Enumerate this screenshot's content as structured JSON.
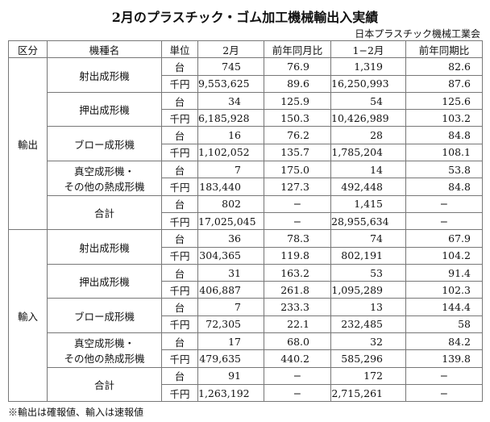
{
  "header": {
    "title": "2月のプラスチック・ゴム加工機械輸出入実績",
    "source": "日本プラスチック機械工業会"
  },
  "table": {
    "columns": [
      "区分",
      "機種名",
      "単位",
      "2月",
      "前年同月比",
      "1−2月",
      "前年同期比"
    ],
    "groups": [
      {
        "label": "輸出",
        "machines": [
          {
            "name": [
              "射出成形機"
            ],
            "rows": [
              {
                "unit": "台",
                "values": [
                  "745",
                  "76.9",
                  "1,319",
                  "82.6"
                ]
              },
              {
                "unit": "千円",
                "values": [
                  "9,553,625",
                  "89.6",
                  "16,250,993",
                  "87.6"
                ]
              }
            ]
          },
          {
            "name": [
              "押出成形機"
            ],
            "rows": [
              {
                "unit": "台",
                "values": [
                  "34",
                  "125.9",
                  "54",
                  "125.6"
                ]
              },
              {
                "unit": "千円",
                "values": [
                  "6,185,928",
                  "150.3",
                  "10,426,989",
                  "103.2"
                ]
              }
            ]
          },
          {
            "name": [
              "ブロー成形機"
            ],
            "rows": [
              {
                "unit": "台",
                "values": [
                  "16",
                  "76.2",
                  "28",
                  "84.8"
                ]
              },
              {
                "unit": "千円",
                "values": [
                  "1,102,052",
                  "135.7",
                  "1,785,204",
                  "108.1"
                ]
              }
            ]
          },
          {
            "name": [
              "真空成形機・",
              "その他の熱成形機"
            ],
            "rows": [
              {
                "unit": "台",
                "values": [
                  "7",
                  "175.0",
                  "14",
                  "53.8"
                ]
              },
              {
                "unit": "千円",
                "values": [
                  "183,440",
                  "127.3",
                  "492,448",
                  "84.8"
                ]
              }
            ]
          },
          {
            "name": [
              "合計"
            ],
            "rows": [
              {
                "unit": "台",
                "values": [
                  "802",
                  "−",
                  "1,415",
                  "−"
                ]
              },
              {
                "unit": "千円",
                "values": [
                  "17,025,045",
                  "−",
                  "28,955,634",
                  "−"
                ]
              }
            ]
          }
        ]
      },
      {
        "label": "輸入",
        "machines": [
          {
            "name": [
              "射出成形機"
            ],
            "rows": [
              {
                "unit": "台",
                "values": [
                  "36",
                  "78.3",
                  "74",
                  "67.9"
                ]
              },
              {
                "unit": "千円",
                "values": [
                  "304,365",
                  "119.8",
                  "802,191",
                  "104.2"
                ]
              }
            ]
          },
          {
            "name": [
              "押出成形機"
            ],
            "rows": [
              {
                "unit": "台",
                "values": [
                  "31",
                  "163.2",
                  "53",
                  "91.4"
                ]
              },
              {
                "unit": "千円",
                "values": [
                  "406,887",
                  "261.8",
                  "1,095,289",
                  "102.3"
                ]
              }
            ]
          },
          {
            "name": [
              "ブロー成形機"
            ],
            "rows": [
              {
                "unit": "台",
                "values": [
                  "7",
                  "233.3",
                  "13",
                  "144.4"
                ]
              },
              {
                "unit": "千円",
                "values": [
                  "72,305",
                  "22.1",
                  "232,485",
                  "58"
                ]
              }
            ]
          },
          {
            "name": [
              "真空成形機・",
              "その他の熱成形機"
            ],
            "rows": [
              {
                "unit": "台",
                "values": [
                  "17",
                  "68.0",
                  "32",
                  "84.2"
                ]
              },
              {
                "unit": "千円",
                "values": [
                  "479,635",
                  "440.2",
                  "585,296",
                  "139.8"
                ]
              }
            ]
          },
          {
            "name": [
              "合計"
            ],
            "rows": [
              {
                "unit": "台",
                "values": [
                  "91",
                  "−",
                  "172",
                  "−"
                ]
              },
              {
                "unit": "千円",
                "values": [
                  "1,263,192",
                  "−",
                  "2,715,261",
                  "−"
                ]
              }
            ]
          }
        ]
      }
    ]
  },
  "footnote": "※輸出は確報値、輸入は速報値"
}
